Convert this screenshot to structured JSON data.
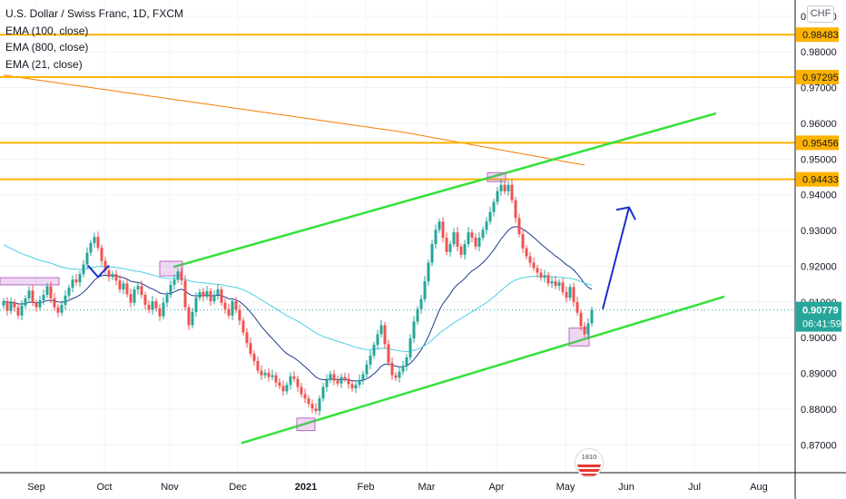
{
  "chart_data": {
    "type": "candlestick",
    "title": "U.S. Dollar / Swiss Franc, 1D, FXCM",
    "indicators": [
      "EMA (100, close)",
      "EMA (800, close)",
      "EMA (21, close)"
    ],
    "currency_button": "CHF",
    "y_ticks": [
      "0.87000",
      "0.88000",
      "0.89000",
      "0.90000",
      "0.91000",
      "0.92000",
      "0.93000",
      "0.94000",
      "0.95000",
      "0.96000",
      "0.97000",
      "0.98000",
      "0.99000"
    ],
    "x_ticks": [
      "Sep",
      "Oct",
      "Nov",
      "Dec",
      "2021",
      "Feb",
      "Mar",
      "Apr",
      "May",
      "Jun",
      "Jul",
      "Aug"
    ],
    "ylim": [
      0.864,
      0.9925
    ],
    "horizontal_levels": [
      {
        "value": 0.98483,
        "label": "0.98483"
      },
      {
        "value": 0.97295,
        "label": "0.97295"
      },
      {
        "value": 0.95456,
        "label": "0.95456"
      },
      {
        "value": 0.94433,
        "label": "0.94433"
      }
    ],
    "last_price": {
      "value": 0.90779,
      "label": "0.90779",
      "countdown": "06:41:59"
    },
    "closes": [
      0.9102,
      0.9075,
      0.9098,
      0.9085,
      0.9062,
      0.909,
      0.911,
      0.9132,
      0.9098,
      0.9085,
      0.9105,
      0.912,
      0.9144,
      0.911,
      0.9085,
      0.907,
      0.9092,
      0.9118,
      0.914,
      0.9163,
      0.9155,
      0.9178,
      0.9205,
      0.9238,
      0.9265,
      0.9282,
      0.9252,
      0.9215,
      0.9188,
      0.917,
      0.9178,
      0.916,
      0.9135,
      0.9152,
      0.9122,
      0.9098,
      0.9135,
      0.9145,
      0.912,
      0.9092,
      0.9078,
      0.9102,
      0.9082,
      0.906,
      0.9098,
      0.912,
      0.9148,
      0.9162,
      0.9185,
      0.916,
      0.9085,
      0.9035,
      0.9072,
      0.9112,
      0.9128,
      0.9115,
      0.913,
      0.9102,
      0.912,
      0.9135,
      0.9098,
      0.908,
      0.9062,
      0.9102,
      0.9078,
      0.9048,
      0.9015,
      0.8985,
      0.8955,
      0.8935,
      0.8908,
      0.8895,
      0.8902,
      0.889,
      0.8895,
      0.8875,
      0.8865,
      0.885,
      0.8868,
      0.8892,
      0.8885,
      0.8862,
      0.8842,
      0.883,
      0.8815,
      0.8802,
      0.8795,
      0.883,
      0.8862,
      0.8882,
      0.8898,
      0.888,
      0.8872,
      0.889,
      0.8885,
      0.887,
      0.8858,
      0.8868,
      0.8882,
      0.8898,
      0.8925,
      0.895,
      0.898,
      0.901,
      0.9035,
      0.8982,
      0.893,
      0.8895,
      0.8888,
      0.8905,
      0.892,
      0.8945,
      0.8998,
      0.9045,
      0.908,
      0.9108,
      0.9158,
      0.921,
      0.9262,
      0.9302,
      0.9325,
      0.928,
      0.924,
      0.9262,
      0.9295,
      0.9255,
      0.9232,
      0.9262,
      0.9295,
      0.928,
      0.9255,
      0.928,
      0.9302,
      0.9325,
      0.9352,
      0.938,
      0.941,
      0.9428,
      0.941,
      0.9428,
      0.9385,
      0.9335,
      0.929,
      0.925,
      0.9228,
      0.921,
      0.9195,
      0.9182,
      0.9168,
      0.9175,
      0.9152,
      0.9158,
      0.9145,
      0.9155,
      0.9128,
      0.9112,
      0.9142,
      0.91,
      0.907,
      0.9032,
      0.901,
      0.904,
      0.9078
    ]
  }
}
